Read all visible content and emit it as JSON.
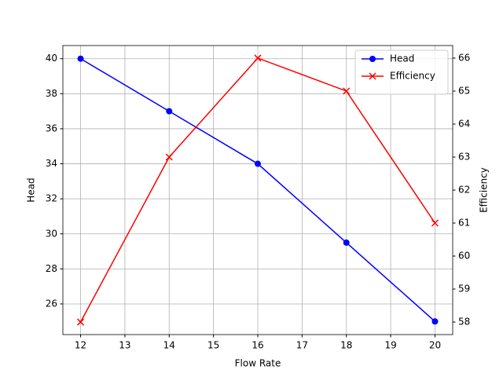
{
  "chart_data": {
    "type": "line",
    "xlabel": "Flow Rate",
    "ylabel": "Head",
    "y2label": "Efficiency",
    "x": [
      12,
      14,
      16,
      18,
      20
    ],
    "series": [
      {
        "name": "Head",
        "color": "#0000ff",
        "marker": "o",
        "values": [
          40,
          37,
          34,
          29.5,
          25
        ]
      },
      {
        "name": "Efficiency",
        "color": "#ff0000",
        "marker": "x",
        "axis": "y2",
        "values": [
          58,
          63,
          66,
          65,
          61
        ]
      }
    ],
    "xlim": [
      11.6,
      20.4
    ],
    "xticks": [
      12,
      13,
      14,
      15,
      16,
      17,
      18,
      19,
      20
    ],
    "ylim": [
      24.25,
      40.75
    ],
    "yticks": [
      26,
      28,
      30,
      32,
      34,
      36,
      38,
      40
    ],
    "y2lim": [
      57.62,
      66.38
    ],
    "y2ticks": [
      58,
      59,
      60,
      61,
      62,
      63,
      64,
      65,
      66
    ],
    "grid": true,
    "legend": "upper right"
  }
}
